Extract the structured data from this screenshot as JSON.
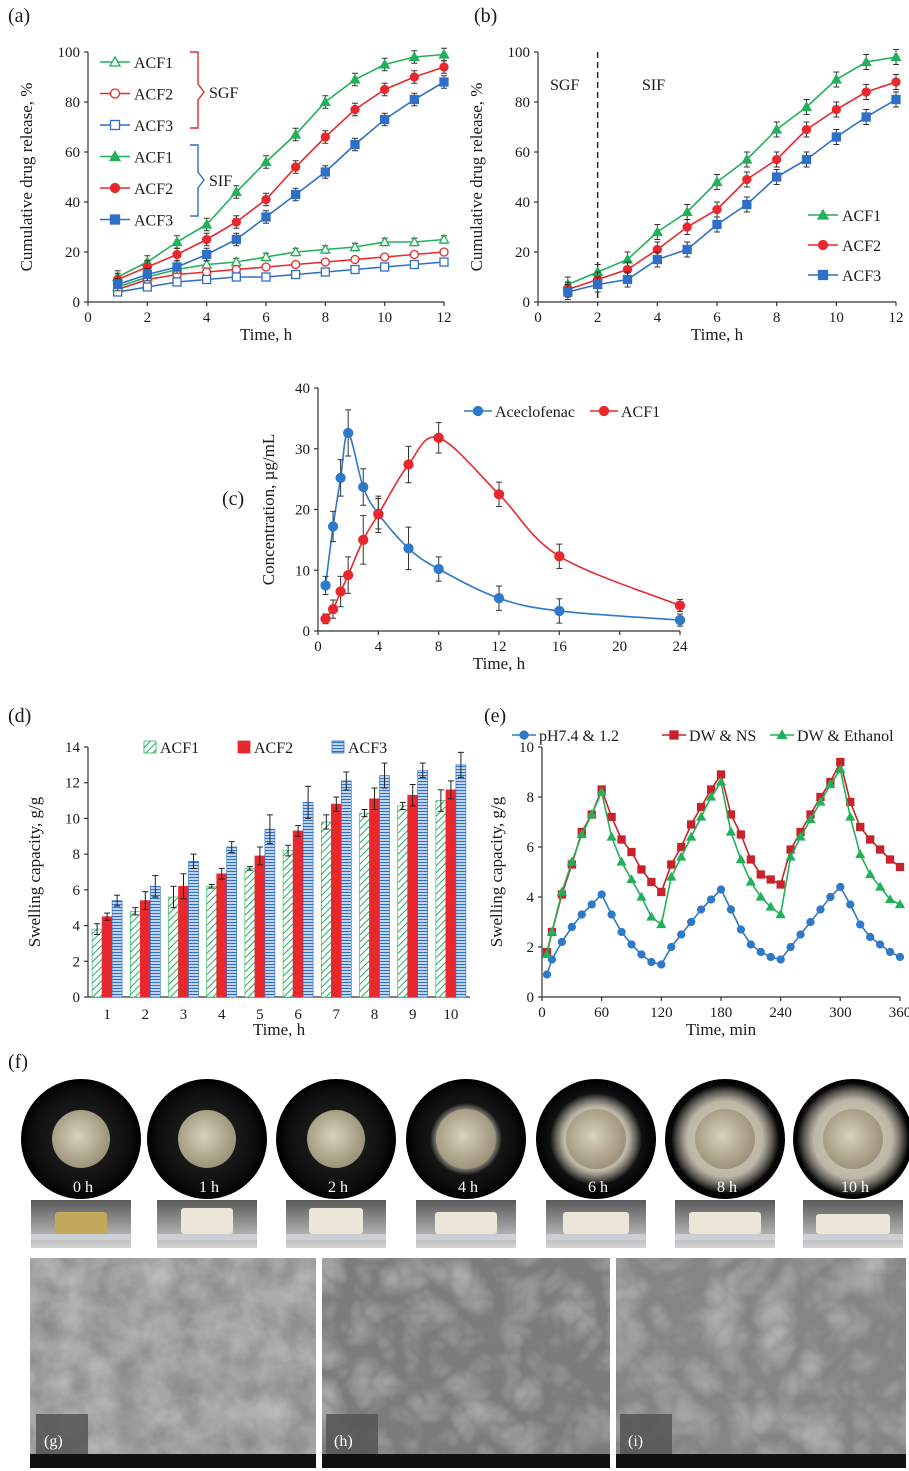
{
  "figure": {
    "panel_labels": {
      "a": "(a)",
      "b": "(b)",
      "c": "(c)",
      "d": "(d)",
      "e": "(e)",
      "f": "(f)",
      "g": "(g)",
      "h": "(h)",
      "i": "(i)"
    },
    "photo_labels": [
      "0 h",
      "1 h",
      "2 h",
      "4 h",
      "6 h",
      "8 h",
      "10 h"
    ]
  },
  "colors": {
    "acf1": "#22b05a",
    "acf2": "#e8282d",
    "acf3": "#2e6fc8",
    "aceclofenac": "#2e79c9",
    "ns": "#c8222a",
    "sgf_brace": "#e8282d",
    "sif_brace": "#2e6fc8"
  },
  "chart_data": [
    {
      "id": "a",
      "type": "line",
      "xlabel": "Time, h",
      "ylabel": "Cumulative drug release, %",
      "xlim": [
        0,
        12
      ],
      "ylim": [
        0,
        100
      ],
      "xticks": [
        0,
        2,
        4,
        6,
        8,
        10,
        12
      ],
      "yticks": [
        0,
        20,
        40,
        60,
        80,
        100
      ],
      "group_labels": {
        "sgf": "SGF",
        "sif": "SIF"
      },
      "x": [
        1,
        2,
        3,
        4,
        5,
        6,
        7,
        8,
        9,
        10,
        11,
        12
      ],
      "series": [
        {
          "name": "ACF1",
          "group": "SGF",
          "marker": "triangle-open",
          "color": "#22b05a",
          "values": [
            6,
            10,
            13,
            15,
            16,
            18,
            20,
            21,
            22,
            24,
            24,
            25
          ],
          "err": 1.5
        },
        {
          "name": "ACF2",
          "group": "SGF",
          "marker": "circle-open",
          "color": "#e8282d",
          "values": [
            5,
            9,
            11,
            12,
            13,
            14,
            15,
            16,
            17,
            18,
            19,
            20
          ],
          "err": 1.2
        },
        {
          "name": "ACF3",
          "group": "SGF",
          "marker": "square-open",
          "color": "#2e6fc8",
          "values": [
            4,
            6,
            8,
            9,
            10,
            10,
            11,
            12,
            13,
            14,
            15,
            16
          ],
          "err": 1
        },
        {
          "name": "ACF1",
          "group": "SIF",
          "marker": "triangle",
          "color": "#22b05a",
          "values": [
            10,
            16,
            24,
            31,
            44,
            56,
            67,
            80,
            89,
            95,
            98,
            99
          ],
          "err": 2.5
        },
        {
          "name": "ACF2",
          "group": "SIF",
          "marker": "circle",
          "color": "#e8282d",
          "values": [
            9,
            14,
            19,
            25,
            32,
            41,
            54,
            66,
            77,
            85,
            90,
            94
          ],
          "err": 2.5
        },
        {
          "name": "ACF3",
          "group": "SIF",
          "marker": "square",
          "color": "#2e6fc8",
          "values": [
            7,
            11,
            14,
            19,
            25,
            34,
            43,
            52,
            63,
            73,
            81,
            88
          ],
          "err": 2.5
        }
      ]
    },
    {
      "id": "b",
      "type": "line",
      "xlabel": "Time, h",
      "ylabel": "Cumulative drug release, %",
      "xlim": [
        0,
        12
      ],
      "ylim": [
        0,
        100
      ],
      "xticks": [
        0,
        2,
        4,
        6,
        8,
        10,
        12
      ],
      "yticks": [
        0,
        20,
        40,
        60,
        80,
        100
      ],
      "annotations": {
        "sgf": "SGF",
        "sif": "SIF",
        "divider_x": 2
      },
      "x": [
        1,
        2,
        3,
        4,
        5,
        6,
        7,
        8,
        9,
        10,
        11,
        12
      ],
      "series": [
        {
          "name": "ACF1",
          "marker": "triangle",
          "color": "#22b05a",
          "values": [
            7,
            12,
            17,
            28,
            36,
            48,
            57,
            69,
            78,
            89,
            96,
            98
          ],
          "err": 3
        },
        {
          "name": "ACF2",
          "marker": "circle",
          "color": "#e8282d",
          "values": [
            5,
            9,
            13,
            21,
            30,
            37,
            49,
            57,
            69,
            77,
            84,
            88
          ],
          "err": 3
        },
        {
          "name": "ACF3",
          "marker": "square",
          "color": "#2e6fc8",
          "values": [
            4,
            7,
            9,
            17,
            21,
            31,
            39,
            50,
            57,
            66,
            74,
            81
          ],
          "err": 3
        }
      ]
    },
    {
      "id": "c",
      "type": "line",
      "xlabel": "Time, h",
      "ylabel": "Concentration, µg/mL",
      "xlim": [
        0,
        24
      ],
      "ylim": [
        0,
        40
      ],
      "xticks": [
        0,
        4,
        8,
        12,
        16,
        20,
        24
      ],
      "yticks": [
        0,
        10,
        20,
        30,
        40
      ],
      "series": [
        {
          "name": "Aceclofenac",
          "marker": "circle",
          "color": "#2e79c9",
          "x": [
            0.5,
            1,
            1.5,
            2,
            3,
            4,
            6,
            8,
            12,
            16,
            24
          ],
          "values": [
            7.5,
            17.2,
            25.2,
            32.6,
            23.7,
            19.3,
            13.6,
            10.2,
            5.4,
            3.3,
            1.8
          ],
          "err": [
            1.5,
            2.5,
            3,
            3.8,
            3,
            2.5,
            3.5,
            2,
            2,
            2,
            1
          ]
        },
        {
          "name": "ACF1",
          "marker": "circle",
          "color": "#e8282d",
          "x": [
            0.5,
            1,
            1.5,
            2,
            3,
            4,
            6,
            8,
            12,
            16,
            24
          ],
          "values": [
            2,
            3.6,
            6.5,
            9.2,
            15,
            19.2,
            27.4,
            31.8,
            22.5,
            12.3,
            4.2
          ],
          "err": [
            0.8,
            1.5,
            2.5,
            3,
            4,
            3,
            3,
            2.5,
            2,
            2,
            1
          ]
        }
      ]
    },
    {
      "id": "d",
      "type": "bar",
      "xlabel": "Time, h",
      "ylabel": "Swelling capacity, g/g",
      "ylim": [
        0,
        14
      ],
      "yticks": [
        0,
        2,
        4,
        6,
        8,
        10,
        12,
        14
      ],
      "categories": [
        "1",
        "2",
        "3",
        "4",
        "5",
        "6",
        "7",
        "8",
        "9",
        "10"
      ],
      "series": [
        {
          "name": "ACF1",
          "color": "#22b05a",
          "values": [
            3.8,
            4.8,
            5.6,
            6.2,
            7.2,
            8.2,
            9.8,
            10.3,
            10.7,
            11
          ],
          "err": [
            0.3,
            0.2,
            0.6,
            0.1,
            0.1,
            0.3,
            0.4,
            0.2,
            0.2,
            0.6
          ]
        },
        {
          "name": "ACF2",
          "color": "#e8282d",
          "values": [
            4.5,
            5.4,
            6.2,
            6.9,
            7.9,
            9.3,
            10.8,
            11.1,
            11.3,
            11.6
          ],
          "err": [
            0.2,
            0.5,
            0.7,
            0.3,
            0.5,
            0.3,
            0.4,
            0.6,
            0.6,
            0.5
          ]
        },
        {
          "name": "ACF3",
          "color": "#2e6fc8",
          "values": [
            5.4,
            6.2,
            7.6,
            8.4,
            9.4,
            10.9,
            12.1,
            12.4,
            12.7,
            13
          ],
          "err": [
            0.3,
            0.6,
            0.4,
            0.3,
            0.8,
            0.9,
            0.5,
            0.7,
            0.4,
            0.7
          ]
        }
      ]
    },
    {
      "id": "e",
      "type": "line",
      "xlabel": "Time, min",
      "ylabel": "Swelling capacity, g/g",
      "xlim": [
        0,
        360
      ],
      "ylim": [
        0,
        10
      ],
      "xticks": [
        0,
        60,
        120,
        180,
        240,
        300,
        360
      ],
      "yticks": [
        0,
        2,
        4,
        6,
        8,
        10
      ],
      "x": [
        5,
        10,
        20,
        30,
        40,
        50,
        60,
        70,
        80,
        90,
        100,
        110,
        120,
        130,
        140,
        150,
        160,
        170,
        180,
        190,
        200,
        210,
        220,
        230,
        240,
        250,
        260,
        270,
        280,
        290,
        300,
        310,
        320,
        330,
        340,
        350,
        360
      ],
      "series": [
        {
          "name": "pH7.4 & 1.2",
          "marker": "circle",
          "color": "#2e79c9",
          "values": [
            0.9,
            1.5,
            2.2,
            2.8,
            3.3,
            3.7,
            4.1,
            3.3,
            2.6,
            2.1,
            1.7,
            1.4,
            1.3,
            2.0,
            2.5,
            3.0,
            3.5,
            3.9,
            4.3,
            3.5,
            2.7,
            2.1,
            1.8,
            1.6,
            1.5,
            2.0,
            2.5,
            3.0,
            3.5,
            4.0,
            4.4,
            3.7,
            2.9,
            2.4,
            2.1,
            1.8,
            1.6
          ]
        },
        {
          "name": "DW & NS",
          "marker": "square",
          "color": "#c8222a",
          "values": [
            1.8,
            2.6,
            4.1,
            5.3,
            6.6,
            7.3,
            8.3,
            7.2,
            6.3,
            5.8,
            5.1,
            4.6,
            4.2,
            5.3,
            6.0,
            6.9,
            7.6,
            8.3,
            8.9,
            7.3,
            6.5,
            5.5,
            4.9,
            4.7,
            4.5,
            5.9,
            6.6,
            7.3,
            8.0,
            8.6,
            9.4,
            7.8,
            6.8,
            6.3,
            5.9,
            5.5,
            5.2
          ]
        },
        {
          "name": "DW & Ethanol",
          "marker": "triangle",
          "color": "#22b05a",
          "values": [
            1.7,
            2.6,
            4.2,
            5.4,
            6.5,
            7.3,
            8.2,
            6.4,
            5.4,
            4.7,
            4.0,
            3.2,
            2.9,
            4.8,
            5.6,
            6.4,
            7.2,
            8.0,
            8.6,
            6.6,
            5.5,
            4.6,
            4.0,
            3.6,
            3.3,
            5.6,
            6.4,
            7.1,
            7.8,
            8.5,
            9.1,
            7.2,
            5.7,
            4.9,
            4.4,
            3.9,
            3.7
          ]
        }
      ]
    }
  ]
}
